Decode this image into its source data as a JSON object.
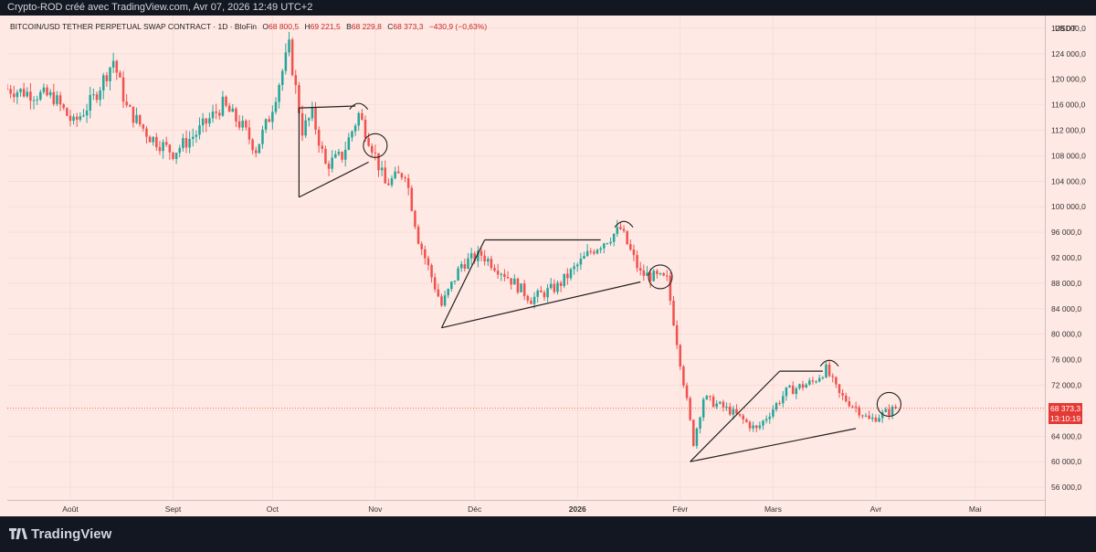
{
  "header": {
    "text": "Crypto-ROD créé avec TradingView.com, Avr 07, 2026 12:49 UTC+2"
  },
  "legend": {
    "symbol": "BITCOIN/USD TETHER PERPETUAL SWAP CONTRACT · 1D · BloFin",
    "open_label": "O",
    "open": "68 800,5",
    "high_label": "H",
    "high": "69 221,5",
    "low_label": "B",
    "low": "68 229,8",
    "close_label": "C",
    "close": "68 373,3",
    "change": "−430,9 (−0,63%)"
  },
  "price_axis": {
    "currency": "USDT",
    "current_price": "68 373,3",
    "countdown": "13:10:19"
  },
  "footer": {
    "brand": "TradingView"
  },
  "colors": {
    "up": "#26a69a",
    "down": "#ef5350",
    "background": "#ffe9e4",
    "last_price": "#e53935"
  },
  "chart_data": {
    "type": "candlestick",
    "title": "BITCOIN/USD TETHER PERPETUAL SWAP CONTRACT · 1D · BloFin",
    "ylim": [
      54000,
      130000
    ],
    "y_ticks": [
      "56 000,0",
      "60 000,0",
      "64 000,0",
      "68 000,0",
      "72 000,0",
      "76 000,0",
      "80 000,0",
      "84 000,0",
      "88 000,0",
      "92 000,0",
      "96 000,0",
      "100 000,0",
      "104 000,0",
      "108 000,0",
      "112 000,0",
      "116 000,0",
      "120 000,0",
      "124 000,0",
      "128 000,0"
    ],
    "y_tick_values": [
      56000,
      60000,
      64000,
      68000,
      72000,
      76000,
      80000,
      84000,
      88000,
      92000,
      96000,
      100000,
      104000,
      108000,
      112000,
      116000,
      120000,
      124000,
      128000
    ],
    "x_range": [
      "2025-07-13",
      "2026-05-22"
    ],
    "x_ticks": [
      {
        "label": "Août",
        "date": "2025-08-01"
      },
      {
        "label": "Sept",
        "date": "2025-09-01"
      },
      {
        "label": "Oct",
        "date": "2025-10-01"
      },
      {
        "label": "Nov",
        "date": "2025-11-01"
      },
      {
        "label": "Déc",
        "date": "2025-12-01"
      },
      {
        "label": "2026",
        "date": "2026-01-01"
      },
      {
        "label": "Févr",
        "date": "2026-02-01"
      },
      {
        "label": "Mars",
        "date": "2026-03-01"
      },
      {
        "label": "Avr",
        "date": "2026-04-01"
      },
      {
        "label": "Mai",
        "date": "2026-05-01"
      }
    ],
    "close_path": [
      {
        "date": "2025-07-13",
        "close": 118500
      },
      {
        "date": "2025-07-20",
        "close": 117800
      },
      {
        "date": "2025-07-27",
        "close": 117200
      },
      {
        "date": "2025-08-02",
        "close": 113000
      },
      {
        "date": "2025-08-08",
        "close": 117000
      },
      {
        "date": "2025-08-14",
        "close": 123000
      },
      {
        "date": "2025-08-18",
        "close": 115500
      },
      {
        "date": "2025-08-25",
        "close": 111000
      },
      {
        "date": "2025-09-01",
        "close": 108500
      },
      {
        "date": "2025-09-08",
        "close": 111500
      },
      {
        "date": "2025-09-16",
        "close": 116000
      },
      {
        "date": "2025-09-22",
        "close": 112500
      },
      {
        "date": "2025-09-26",
        "close": 109000
      },
      {
        "date": "2025-09-30",
        "close": 114000
      },
      {
        "date": "2025-10-06",
        "close": 125000
      },
      {
        "date": "2025-10-10",
        "close": 112000
      },
      {
        "date": "2025-10-13",
        "close": 114500
      },
      {
        "date": "2025-10-17",
        "close": 106500
      },
      {
        "date": "2025-10-22",
        "close": 108000
      },
      {
        "date": "2025-10-27",
        "close": 114500
      },
      {
        "date": "2025-10-31",
        "close": 109500
      },
      {
        "date": "2025-11-04",
        "close": 103500
      },
      {
        "date": "2025-11-10",
        "close": 105500
      },
      {
        "date": "2025-11-14",
        "close": 95000
      },
      {
        "date": "2025-11-21",
        "close": 84500
      },
      {
        "date": "2025-11-27",
        "close": 91000
      },
      {
        "date": "2025-12-03",
        "close": 92500
      },
      {
        "date": "2025-12-10",
        "close": 89500
      },
      {
        "date": "2025-12-18",
        "close": 85500
      },
      {
        "date": "2025-12-26",
        "close": 87500
      },
      {
        "date": "2026-01-05",
        "close": 93000
      },
      {
        "date": "2026-01-14",
        "close": 96500
      },
      {
        "date": "2026-01-20",
        "close": 89500
      },
      {
        "date": "2026-01-28",
        "close": 88500
      },
      {
        "date": "2026-02-05",
        "close": 63000
      },
      {
        "date": "2026-02-08",
        "close": 70000
      },
      {
        "date": "2026-02-16",
        "close": 68000
      },
      {
        "date": "2026-02-24",
        "close": 65000
      },
      {
        "date": "2026-03-05",
        "close": 71000
      },
      {
        "date": "2026-03-13",
        "close": 72500
      },
      {
        "date": "2026-03-17",
        "close": 74500
      },
      {
        "date": "2026-03-21",
        "close": 70500
      },
      {
        "date": "2026-03-26",
        "close": 68500
      },
      {
        "date": "2026-03-30",
        "close": 66500
      },
      {
        "date": "2026-04-07",
        "close": 68373
      }
    ],
    "current_price": 68373.3,
    "annotations": [
      {
        "type": "triangle",
        "apex": [
          "2025-10-09",
          101500
        ],
        "top": [
          [
            "2025-10-09",
            115500
          ],
          [
            "2025-10-26",
            115800
          ]
        ],
        "bottom_end": [
          "2025-10-30",
          107000
        ]
      },
      {
        "type": "triangle",
        "apex": [
          "2025-11-21",
          81000
        ],
        "top": [
          [
            "2025-12-04",
            94800
          ],
          [
            "2026-01-08",
            94800
          ]
        ],
        "bottom_end": [
          "2026-01-20",
          88200
        ]
      },
      {
        "type": "triangle",
        "apex": [
          "2026-02-04",
          60000
        ],
        "top": [
          [
            "2026-03-03",
            74200
          ],
          [
            "2026-03-16",
            74200
          ]
        ],
        "bottom_end": [
          "2026-03-26",
          65200
        ]
      },
      {
        "type": "arc",
        "at": [
          "2025-10-27",
          116000
        ]
      },
      {
        "type": "arc",
        "at": [
          "2026-01-15",
          97500
        ]
      },
      {
        "type": "arc",
        "at": [
          "2026-03-18",
          75700
        ]
      },
      {
        "type": "circle",
        "at": [
          "2025-11-01",
          109600
        ]
      },
      {
        "type": "circle",
        "at": [
          "2026-01-26",
          89000
        ]
      },
      {
        "type": "circle",
        "at": [
          "2026-04-05",
          69000
        ]
      }
    ]
  }
}
